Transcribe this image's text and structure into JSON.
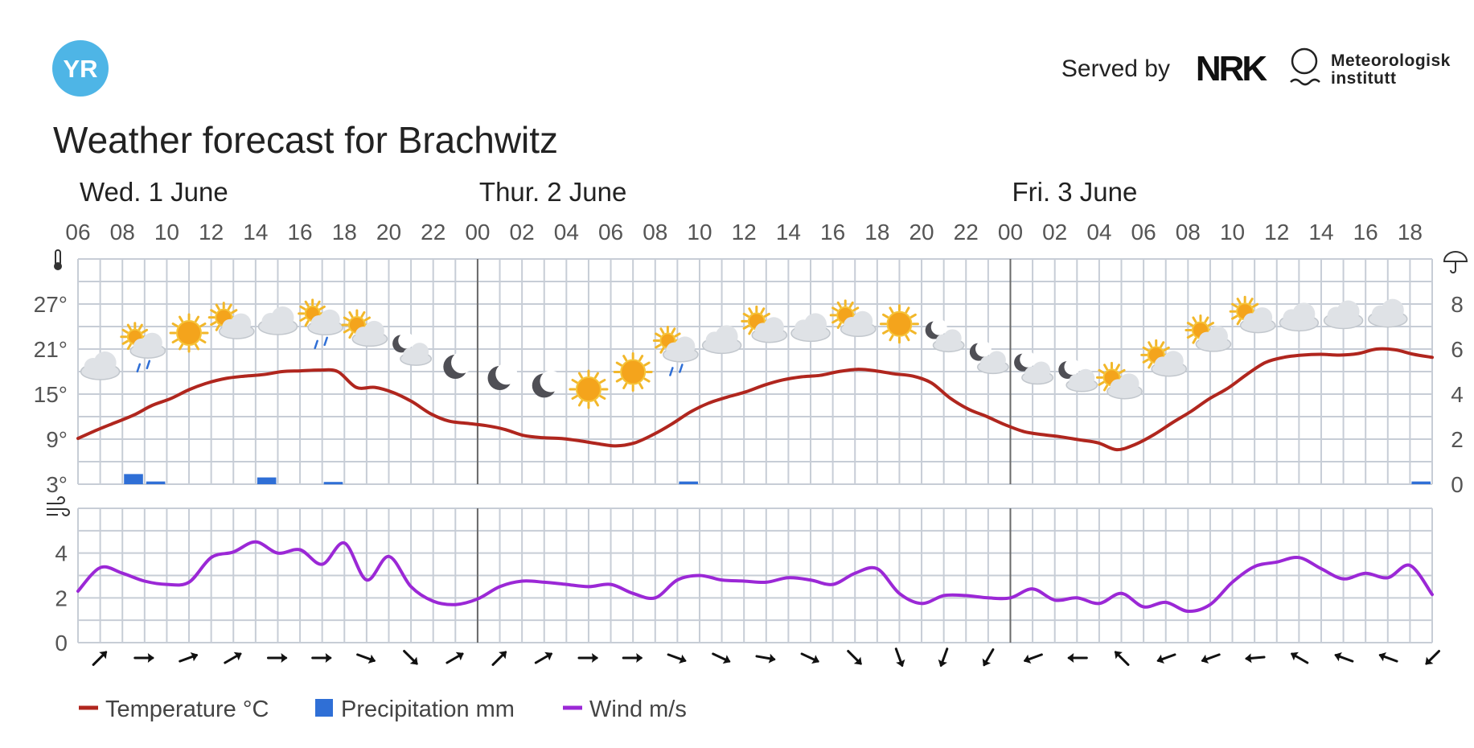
{
  "header": {
    "logo_text": "YR",
    "served_by": "Served by",
    "nrk_logo": "NRK",
    "met_name_line1": "Meteorologisk",
    "met_name_line2": "institutt",
    "title": "Weather forecast for Brachwitz"
  },
  "icons": {
    "thermometer": "thermometer-icon",
    "umbrella": "umbrella-icon",
    "wind": "wind-icon"
  },
  "colors": {
    "logo": "#4eb5e6",
    "temperature": "#b0261e",
    "precipitation": "#2f6fd6",
    "wind": "#9b28d6",
    "grid": "#c7cdd6"
  },
  "chart_data": {
    "type": "line",
    "days": [
      {
        "label": "Wed. 1 June",
        "start_index": 0
      },
      {
        "label": "Thur. 2 June",
        "start_index": 18
      },
      {
        "label": "Fri. 3 June",
        "start_index": 42
      }
    ],
    "hour_labels": [
      "06",
      "08",
      "10",
      "12",
      "14",
      "16",
      "18",
      "20",
      "22",
      "00",
      "02",
      "04",
      "06",
      "08",
      "10",
      "12",
      "14",
      "16",
      "18",
      "20",
      "22",
      "00",
      "02",
      "04",
      "06",
      "08",
      "10",
      "12",
      "14",
      "16",
      "18"
    ],
    "hours_count": 61,
    "temperature": {
      "name": "Temperature °C",
      "ylim": [
        3,
        33
      ],
      "ticks": [
        "3°",
        "9°",
        "15°",
        "21°",
        "27°"
      ],
      "points": [
        [
          0,
          9.1
        ],
        [
          1,
          10.2
        ],
        [
          2,
          11.2
        ],
        [
          3,
          12.2
        ],
        [
          4,
          13.5
        ],
        [
          5,
          14.4
        ],
        [
          6,
          15.6
        ],
        [
          7,
          16.5
        ],
        [
          8,
          17.1
        ],
        [
          9,
          17.4
        ],
        [
          10,
          17.6
        ],
        [
          11,
          18.0
        ],
        [
          12,
          18.1
        ],
        [
          13,
          18.2
        ],
        [
          14,
          18.0
        ],
        [
          15,
          15.9
        ],
        [
          16,
          15.9
        ],
        [
          17,
          15.2
        ],
        [
          18,
          14.0
        ],
        [
          19,
          12.4
        ],
        [
          20,
          11.4
        ],
        [
          21,
          11.1
        ],
        [
          22,
          10.8
        ],
        [
          23,
          10.3
        ],
        [
          24,
          9.5
        ],
        [
          25,
          9.2
        ],
        [
          26,
          9.1
        ],
        [
          27,
          8.8
        ],
        [
          28,
          8.4
        ],
        [
          29,
          8.1
        ],
        [
          30,
          8.5
        ],
        [
          31,
          9.6
        ],
        [
          32,
          11.0
        ],
        [
          33,
          12.6
        ],
        [
          34,
          13.8
        ],
        [
          35,
          14.6
        ],
        [
          36,
          15.3
        ],
        [
          37,
          16.2
        ],
        [
          38,
          16.9
        ],
        [
          39,
          17.3
        ],
        [
          40,
          17.5
        ],
        [
          41,
          18.0
        ],
        [
          42,
          18.3
        ],
        [
          43,
          18.1
        ],
        [
          44,
          17.7
        ],
        [
          45,
          17.4
        ],
        [
          46,
          16.5
        ],
        [
          47,
          14.5
        ],
        [
          48,
          13.0
        ],
        [
          49,
          12.0
        ],
        [
          50,
          10.9
        ],
        [
          51,
          10.0
        ],
        [
          52,
          9.6
        ],
        [
          53,
          9.3
        ],
        [
          54,
          8.9
        ],
        [
          55,
          8.5
        ],
        [
          56,
          7.6
        ],
        [
          57,
          8.3
        ],
        [
          58,
          9.6
        ],
        [
          59,
          11.2
        ],
        [
          60,
          12.7
        ],
        [
          61,
          14.4
        ],
        [
          62,
          15.8
        ],
        [
          63,
          17.6
        ],
        [
          64,
          19.2
        ],
        [
          65,
          19.9
        ],
        [
          66,
          20.2
        ],
        [
          67,
          20.3
        ],
        [
          68,
          20.2
        ],
        [
          69,
          20.4
        ],
        [
          70,
          21.0
        ],
        [
          71,
          20.9
        ],
        [
          72,
          20.3
        ],
        [
          73,
          19.9
        ]
      ],
      "x_max": 61
    },
    "precipitation": {
      "name": "Precipitation mm",
      "ylim": [
        0,
        10
      ],
      "ticks": [
        "0",
        "2",
        "4",
        "6",
        "8"
      ],
      "bars": [
        [
          2,
          0.45
        ],
        [
          3,
          0.12
        ],
        [
          8,
          0.3
        ],
        [
          11,
          0.1
        ],
        [
          27,
          0.12
        ],
        [
          60,
          0.12
        ]
      ]
    },
    "wind": {
      "name": "Wind m/s",
      "ylim": [
        0,
        6
      ],
      "ticks": [
        "0",
        "2",
        "4"
      ],
      "points": [
        [
          0,
          2.3
        ],
        [
          1,
          3.35
        ],
        [
          2,
          3.1
        ],
        [
          3,
          2.75
        ],
        [
          4,
          2.6
        ],
        [
          5,
          2.7
        ],
        [
          6,
          3.8
        ],
        [
          7,
          4.05
        ],
        [
          8,
          4.5
        ],
        [
          9,
          4.0
        ],
        [
          10,
          4.15
        ],
        [
          11,
          3.5
        ],
        [
          12,
          4.45
        ],
        [
          13,
          2.8
        ],
        [
          14,
          3.85
        ],
        [
          15,
          2.5
        ],
        [
          16,
          1.85
        ],
        [
          17,
          1.7
        ],
        [
          18,
          1.95
        ],
        [
          19,
          2.5
        ],
        [
          20,
          2.75
        ],
        [
          21,
          2.7
        ],
        [
          22,
          2.6
        ],
        [
          23,
          2.5
        ],
        [
          24,
          2.6
        ],
        [
          25,
          2.2
        ],
        [
          26,
          2.0
        ],
        [
          27,
          2.8
        ],
        [
          28,
          3.0
        ],
        [
          29,
          2.8
        ],
        [
          30,
          2.75
        ],
        [
          31,
          2.7
        ],
        [
          32,
          2.9
        ],
        [
          33,
          2.8
        ],
        [
          34,
          2.6
        ],
        [
          35,
          3.1
        ],
        [
          36,
          3.3
        ],
        [
          37,
          2.2
        ],
        [
          38,
          1.75
        ],
        [
          39,
          2.1
        ],
        [
          40,
          2.1
        ],
        [
          41,
          2.0
        ],
        [
          42,
          2.0
        ],
        [
          43,
          2.4
        ],
        [
          44,
          1.9
        ],
        [
          45,
          2.0
        ],
        [
          46,
          1.75
        ],
        [
          47,
          2.2
        ],
        [
          48,
          1.6
        ],
        [
          49,
          1.8
        ],
        [
          50,
          1.4
        ],
        [
          51,
          1.7
        ],
        [
          52,
          2.7
        ],
        [
          53,
          3.4
        ],
        [
          54,
          3.6
        ],
        [
          55,
          3.8
        ],
        [
          56,
          3.3
        ],
        [
          57,
          2.85
        ],
        [
          58,
          3.1
        ],
        [
          59,
          2.9
        ],
        [
          60,
          3.45
        ],
        [
          61,
          2.15
        ]
      ],
      "x_max": 61
    },
    "weather_symbols": [
      {
        "hour": 1,
        "temp": 16.5,
        "kind": "cloud"
      },
      {
        "hour": 3,
        "temp": 19.2,
        "kind": "sun-cloud-rain"
      },
      {
        "hour": 5,
        "temp": 21.0,
        "kind": "sun"
      },
      {
        "hour": 7,
        "temp": 22.0,
        "kind": "sun-cloud"
      },
      {
        "hour": 9,
        "temp": 22.5,
        "kind": "cloud"
      },
      {
        "hour": 11,
        "temp": 22.3,
        "kind": "sun-cloud-rain"
      },
      {
        "hour": 13,
        "temp": 21.0,
        "kind": "sun-cloud"
      },
      {
        "hour": 15,
        "temp": 18.5,
        "kind": "moon-cloud"
      },
      {
        "hour": 17,
        "temp": 16.5,
        "kind": "moon"
      },
      {
        "hour": 19,
        "temp": 15.0,
        "kind": "moon"
      },
      {
        "hour": 21,
        "temp": 14.0,
        "kind": "moon"
      },
      {
        "hour": 23,
        "temp": 13.5,
        "kind": "sun"
      },
      {
        "hour": 25,
        "temp": 15.8,
        "kind": "sun"
      },
      {
        "hour": 27,
        "temp": 18.7,
        "kind": "sun-cloud-rain"
      },
      {
        "hour": 29,
        "temp": 20.0,
        "kind": "cloud"
      },
      {
        "hour": 31,
        "temp": 21.5,
        "kind": "sun-cloud"
      },
      {
        "hour": 33,
        "temp": 21.6,
        "kind": "cloud"
      },
      {
        "hour": 35,
        "temp": 22.3,
        "kind": "sun-cloud"
      },
      {
        "hour": 37,
        "temp": 22.2,
        "kind": "sun"
      },
      {
        "hour": 39,
        "temp": 20.3,
        "kind": "moon-cloud"
      },
      {
        "hour": 41,
        "temp": 17.4,
        "kind": "moon-cloud"
      },
      {
        "hour": 43,
        "temp": 16.0,
        "kind": "moon-cloud"
      },
      {
        "hour": 45,
        "temp": 15.0,
        "kind": "moon-cloud"
      },
      {
        "hour": 47,
        "temp": 14.0,
        "kind": "sun-cloud"
      },
      {
        "hour": 49,
        "temp": 17.0,
        "kind": "sun-cloud"
      },
      {
        "hour": 51,
        "temp": 20.3,
        "kind": "sun-cloud"
      },
      {
        "hour": 53,
        "temp": 22.8,
        "kind": "sun-cloud"
      },
      {
        "hour": 55,
        "temp": 23.0,
        "kind": "cloud"
      },
      {
        "hour": 57,
        "temp": 23.3,
        "kind": "cloud"
      },
      {
        "hour": 59,
        "temp": 23.5,
        "kind": "cloud"
      }
    ],
    "wind_directions_deg": [
      45,
      90,
      70,
      60,
      90,
      90,
      110,
      135,
      60,
      45,
      60,
      90,
      90,
      110,
      115,
      100,
      115,
      135,
      160,
      200,
      210,
      250,
      270,
      315,
      250,
      250,
      265,
      300,
      290,
      290,
      225
    ]
  }
}
